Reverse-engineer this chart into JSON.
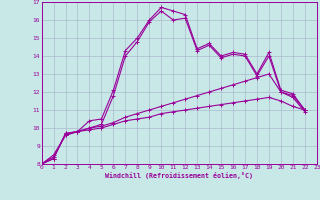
{
  "bg_color": "#c8e8e8",
  "line_color": "#990099",
  "grid_color": "#aabbcc",
  "xlabel": "Windchill (Refroidissement éolien,°C)",
  "xlim": [
    0,
    23
  ],
  "ylim": [
    8,
    17
  ],
  "xticks": [
    0,
    1,
    2,
    3,
    4,
    5,
    6,
    7,
    8,
    9,
    10,
    11,
    12,
    13,
    14,
    15,
    16,
    17,
    18,
    19,
    20,
    21,
    22,
    23
  ],
  "yticks": [
    8,
    9,
    10,
    11,
    12,
    13,
    14,
    15,
    16,
    17
  ],
  "series": [
    {
      "x": [
        0,
        1,
        2,
        3,
        4,
        5,
        6,
        7,
        8,
        9,
        10,
        11,
        12,
        13,
        14,
        15,
        16,
        17,
        18,
        19,
        20,
        21,
        22,
        23
      ],
      "y": [
        8.0,
        8.3,
        9.7,
        9.8,
        10.4,
        10.5,
        12.1,
        14.3,
        15.0,
        16.0,
        16.7,
        16.5,
        16.3,
        14.4,
        14.7,
        14.0,
        14.2,
        14.1,
        13.0,
        14.2,
        12.1,
        11.9,
        11.0,
        null
      ]
    },
    {
      "x": [
        0,
        1,
        2,
        3,
        4,
        5,
        6,
        7,
        8,
        9,
        10,
        11,
        12,
        13,
        14,
        15,
        16,
        17,
        18,
        19,
        20,
        21,
        22,
        23
      ],
      "y": [
        8.0,
        8.3,
        9.7,
        9.8,
        10.0,
        10.2,
        11.8,
        14.0,
        14.8,
        15.9,
        16.5,
        16.0,
        16.1,
        14.3,
        14.6,
        13.9,
        14.1,
        14.0,
        12.9,
        14.0,
        12.0,
        11.7,
        10.9,
        null
      ]
    },
    {
      "x": [
        0,
        1,
        2,
        3,
        4,
        5,
        6,
        7,
        8,
        9,
        10,
        11,
        12,
        13,
        14,
        15,
        16,
        17,
        18,
        19,
        20,
        21,
        22,
        23
      ],
      "y": [
        8.0,
        8.5,
        9.6,
        9.8,
        10.0,
        10.1,
        10.3,
        10.6,
        10.8,
        11.0,
        11.2,
        11.4,
        11.6,
        11.8,
        12.0,
        12.2,
        12.4,
        12.6,
        12.8,
        13.0,
        12.0,
        11.8,
        11.0,
        null
      ]
    },
    {
      "x": [
        0,
        1,
        2,
        3,
        4,
        5,
        6,
        7,
        8,
        9,
        10,
        11,
        12,
        13,
        14,
        15,
        16,
        17,
        18,
        19,
        20,
        21,
        22,
        23
      ],
      "y": [
        8.0,
        8.4,
        9.6,
        9.8,
        9.9,
        10.0,
        10.2,
        10.4,
        10.5,
        10.6,
        10.8,
        10.9,
        11.0,
        11.1,
        11.2,
        11.3,
        11.4,
        11.5,
        11.6,
        11.7,
        11.5,
        11.2,
        11.0,
        null
      ]
    }
  ]
}
